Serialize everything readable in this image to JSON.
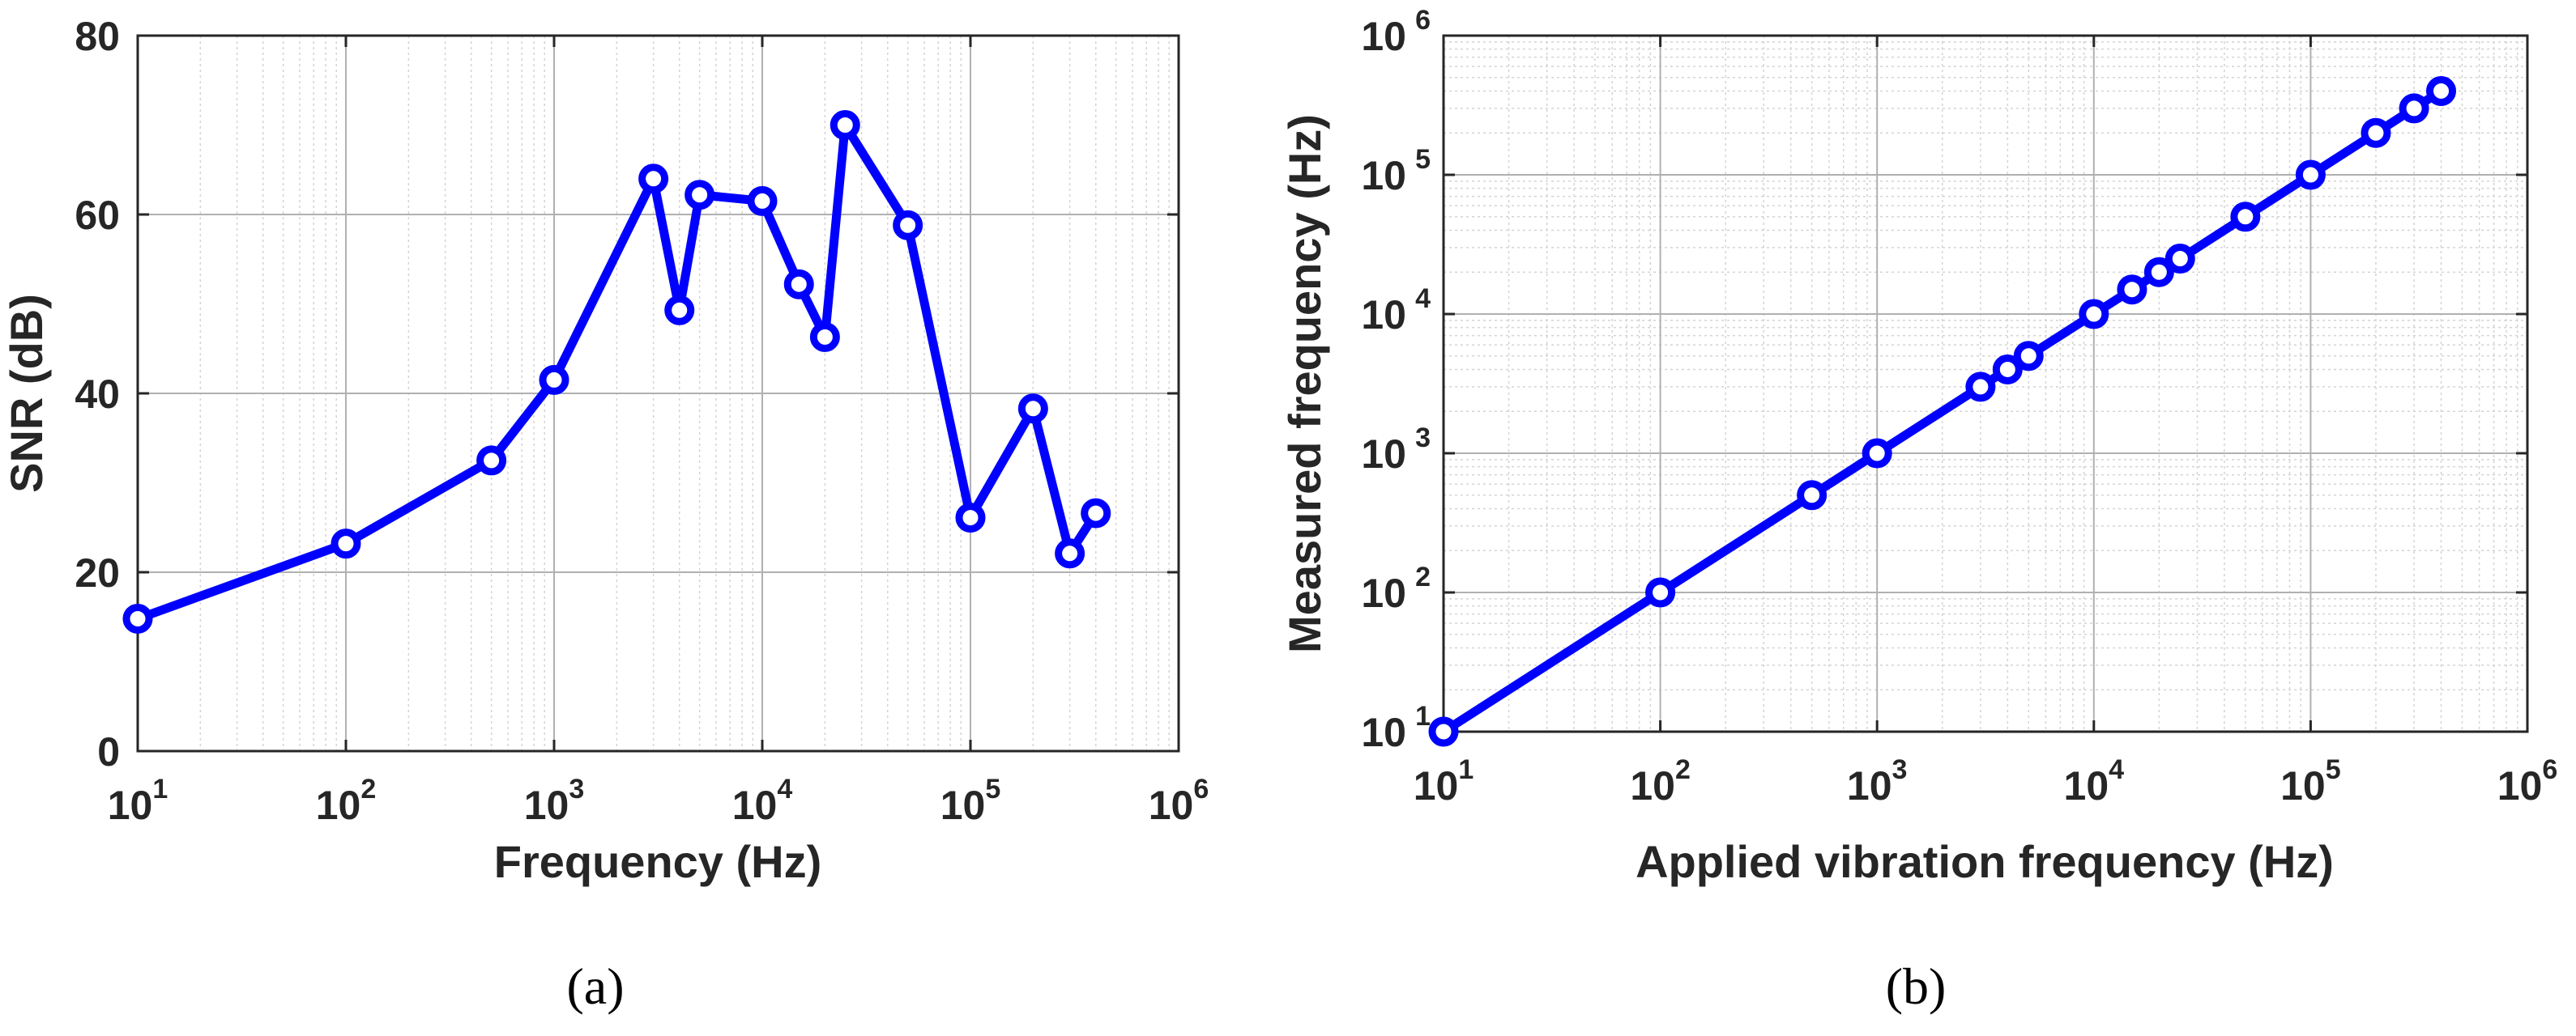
{
  "colors": {
    "series": "#0000ff",
    "axis": "#262626",
    "grid": "#b0b0b0"
  },
  "chart_data": [
    {
      "type": "line",
      "panel_label": "(a)",
      "xlabel": "Frequency (Hz)",
      "ylabel": "SNR (dB)",
      "xscale": "log",
      "yscale": "linear",
      "xlim": [
        10,
        1000000
      ],
      "ylim": [
        0,
        80
      ],
      "grid": true,
      "marker": "circle",
      "xticks": [
        {
          "value": 10,
          "base": "10",
          "exp": "1"
        },
        {
          "value": 100,
          "base": "10",
          "exp": "2"
        },
        {
          "value": 1000,
          "base": "10",
          "exp": "3"
        },
        {
          "value": 10000,
          "base": "10",
          "exp": "4"
        },
        {
          "value": 100000,
          "base": "10",
          "exp": "5"
        },
        {
          "value": 1000000,
          "base": "10",
          "exp": "6"
        }
      ],
      "yticks": [
        {
          "value": 0,
          "label": "0"
        },
        {
          "value": 20,
          "label": "20"
        },
        {
          "value": 40,
          "label": "40"
        },
        {
          "value": 60,
          "label": "60"
        },
        {
          "value": 80,
          "label": "80"
        }
      ],
      "x": [
        10,
        100,
        500,
        1000,
        3000,
        4000,
        5000,
        10000,
        15000,
        20000,
        25000,
        50000,
        100000,
        200000,
        300000,
        400000
      ],
      "y": [
        14.8,
        23.2,
        32.5,
        41.5,
        64,
        49.3,
        62.2,
        61.5,
        52.2,
        46.3,
        70,
        58.8,
        26.1,
        38.3,
        22.1,
        26.6
      ]
    },
    {
      "type": "line",
      "panel_label": "(b)",
      "xlabel": "Applied vibration frequency (Hz)",
      "ylabel": "Measured frequency (Hz)",
      "xscale": "log",
      "yscale": "log",
      "xlim": [
        10,
        1000000
      ],
      "ylim": [
        10,
        1000000
      ],
      "grid": true,
      "marker": "circle",
      "xticks": [
        {
          "value": 10,
          "base": "10",
          "exp": "1"
        },
        {
          "value": 100,
          "base": "10",
          "exp": "2"
        },
        {
          "value": 1000,
          "base": "10",
          "exp": "3"
        },
        {
          "value": 10000,
          "base": "10",
          "exp": "4"
        },
        {
          "value": 100000,
          "base": "10",
          "exp": "5"
        },
        {
          "value": 1000000,
          "base": "10",
          "exp": "6"
        }
      ],
      "yticks": [
        {
          "value": 10,
          "base": "10",
          "exp": "1"
        },
        {
          "value": 100,
          "base": "10",
          "exp": "2"
        },
        {
          "value": 1000,
          "base": "10",
          "exp": "3"
        },
        {
          "value": 10000,
          "base": "10",
          "exp": "4"
        },
        {
          "value": 100000,
          "base": "10",
          "exp": "5"
        },
        {
          "value": 1000000,
          "base": "10",
          "exp": "6"
        }
      ],
      "x": [
        10,
        100,
        500,
        1000,
        3000,
        4000,
        5000,
        10000,
        15000,
        20000,
        25000,
        50000,
        100000,
        200000,
        300000,
        400000
      ],
      "y": [
        10,
        100,
        500,
        1000,
        3000,
        4000,
        5000,
        10000,
        15000,
        20000,
        25000,
        50000,
        100000,
        200000,
        300000,
        400000
      ]
    }
  ]
}
